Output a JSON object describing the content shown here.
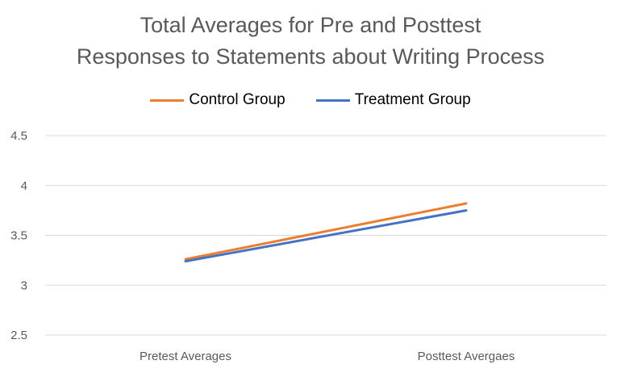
{
  "chart_data": {
    "type": "line",
    "title": [
      "Total Averages for Pre and Posttest",
      "Responses to Statements about Writing Process"
    ],
    "categories": [
      "Pretest Averages",
      "Posttest Avergaes"
    ],
    "series": [
      {
        "name": "Control Group",
        "values": [
          3.26,
          3.82
        ],
        "color": "#ED7D31"
      },
      {
        "name": "Treatment Group",
        "values": [
          3.24,
          3.75
        ],
        "color": "#4472C4"
      }
    ],
    "ylim": [
      2.5,
      4.5
    ],
    "yticks": [
      2.5,
      3,
      3.5,
      4,
      4.5
    ],
    "ytick_labels": [
      "2.5",
      "3",
      "3.5",
      "4",
      "4.5"
    ],
    "xlabel": "",
    "ylabel": "",
    "grid": true,
    "legend_position": "top"
  }
}
